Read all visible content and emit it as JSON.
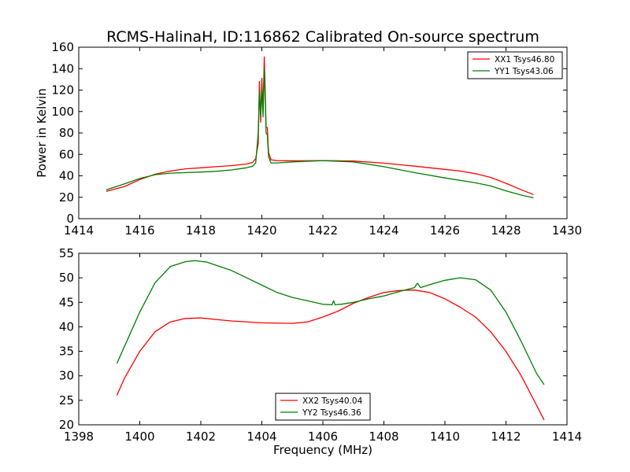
{
  "figure": {
    "title": "RCMS-HalinaH, ID:116862 Calibrated On-source spectrum",
    "colors": {
      "red": "#ff0000",
      "green": "#007f00"
    }
  },
  "chart_data": [
    {
      "type": "line",
      "title": "RCMS-HalinaH, ID:116862 Calibrated On-source spectrum",
      "xlabel": "",
      "ylabel": "Power in Kelvin",
      "xlim": [
        1414,
        1430
      ],
      "ylim": [
        0,
        160
      ],
      "xticks": [
        "1414",
        "1416",
        "1418",
        "1420",
        "1422",
        "1424",
        "1426",
        "1428",
        "1430"
      ],
      "yticks": [
        "0",
        "20",
        "40",
        "60",
        "80",
        "100",
        "120",
        "140",
        "160"
      ],
      "grid": false,
      "legend": "top-right",
      "series": [
        {
          "name": "XX1 Tsys46.80",
          "color": "#ff0000",
          "points": [
            [
              1414.9,
              25.5
            ],
            [
              1415.5,
              30
            ],
            [
              1416,
              36.5
            ],
            [
              1416.5,
              41.5
            ],
            [
              1417,
              44.5
            ],
            [
              1417.5,
              46.5
            ],
            [
              1418,
              47.5
            ],
            [
              1418.5,
              48.5
            ],
            [
              1419,
              49.5
            ],
            [
              1419.5,
              51
            ],
            [
              1419.7,
              52.5
            ],
            [
              1419.8,
              56
            ],
            [
              1419.88,
              70
            ],
            [
              1419.92,
              128
            ],
            [
              1419.96,
              90
            ],
            [
              1420.0,
              131
            ],
            [
              1420.04,
              100
            ],
            [
              1420.08,
              151
            ],
            [
              1420.12,
              110
            ],
            [
              1420.14,
              85
            ],
            [
              1420.18,
              85
            ],
            [
              1420.22,
              62
            ],
            [
              1420.3,
              55
            ],
            [
              1420.5,
              54.2
            ],
            [
              1421,
              54
            ],
            [
              1422,
              54.2
            ],
            [
              1423,
              53.8
            ],
            [
              1424,
              51.8
            ],
            [
              1425,
              49
            ],
            [
              1426,
              46
            ],
            [
              1426.5,
              44.5
            ],
            [
              1427,
              42
            ],
            [
              1427.5,
              38.5
            ],
            [
              1428,
              33
            ],
            [
              1428.5,
              27
            ],
            [
              1428.9,
              22.5
            ]
          ]
        },
        {
          "name": "YY1 Tsys43.06",
          "color": "#007f00",
          "points": [
            [
              1414.9,
              27
            ],
            [
              1415.5,
              32.5
            ],
            [
              1416,
              37.5
            ],
            [
              1416.5,
              41
            ],
            [
              1417,
              42.5
            ],
            [
              1418,
              43.5
            ],
            [
              1418.5,
              44.2
            ],
            [
              1419,
              45.5
            ],
            [
              1419.5,
              47.5
            ],
            [
              1419.7,
              49
            ],
            [
              1419.8,
              52
            ],
            [
              1419.88,
              80
            ],
            [
              1419.92,
              118
            ],
            [
              1419.96,
              96
            ],
            [
              1420.0,
              122
            ],
            [
              1420.04,
              95
            ],
            [
              1420.08,
              140
            ],
            [
              1420.12,
              105
            ],
            [
              1420.14,
              80
            ],
            [
              1420.18,
              78
            ],
            [
              1420.22,
              58
            ],
            [
              1420.3,
              52
            ],
            [
              1420.5,
              52
            ],
            [
              1421,
              53
            ],
            [
              1422,
              54.2
            ],
            [
              1423,
              53
            ],
            [
              1424,
              48.5
            ],
            [
              1425,
              43
            ],
            [
              1426,
              38
            ],
            [
              1427,
              33.5
            ],
            [
              1427.5,
              30.5
            ],
            [
              1428,
              26
            ],
            [
              1428.5,
              22
            ],
            [
              1428.9,
              19.5
            ]
          ]
        }
      ]
    },
    {
      "type": "line",
      "title": "",
      "xlabel": "Frequency (MHz)",
      "ylabel": "",
      "xlim": [
        1398,
        1414
      ],
      "ylim": [
        20,
        55
      ],
      "xticks": [
        "1398",
        "1400",
        "1402",
        "1404",
        "1406",
        "1408",
        "1410",
        "1412",
        "1414"
      ],
      "yticks": [
        "20",
        "25",
        "30",
        "35",
        "40",
        "45",
        "50",
        "55"
      ],
      "grid": false,
      "legend": "bottom-center",
      "series": [
        {
          "name": "XX2 Tsys40.04",
          "color": "#ff0000",
          "points": [
            [
              1399.25,
              26
            ],
            [
              1399.5,
              29.5
            ],
            [
              1400,
              35
            ],
            [
              1400.5,
              39
            ],
            [
              1401,
              41
            ],
            [
              1401.5,
              41.7
            ],
            [
              1402,
              41.8
            ],
            [
              1402.5,
              41.5
            ],
            [
              1403,
              41.2
            ],
            [
              1404,
              40.8
            ],
            [
              1405,
              40.7
            ],
            [
              1405.5,
              41
            ],
            [
              1406,
              42
            ],
            [
              1406.5,
              43.2
            ],
            [
              1407,
              44.8
            ],
            [
              1407.5,
              46
            ],
            [
              1408,
              47
            ],
            [
              1408.5,
              47.4
            ],
            [
              1409,
              47.5
            ],
            [
              1409.5,
              47
            ],
            [
              1410,
              45.7
            ],
            [
              1410.5,
              44
            ],
            [
              1411,
              42
            ],
            [
              1411.5,
              39
            ],
            [
              1412,
              35
            ],
            [
              1412.5,
              30
            ],
            [
              1413,
              24
            ],
            [
              1413.25,
              21
            ]
          ]
        },
        {
          "name": "YY2 Tsys46.36",
          "color": "#007f00",
          "points": [
            [
              1399.25,
              32.5
            ],
            [
              1399.5,
              36
            ],
            [
              1400,
              43
            ],
            [
              1400.5,
              49
            ],
            [
              1401,
              52.3
            ],
            [
              1401.5,
              53.3
            ],
            [
              1401.8,
              53.5
            ],
            [
              1402.2,
              53.2
            ],
            [
              1403,
              51.5
            ],
            [
              1403.5,
              50
            ],
            [
              1404,
              48.5
            ],
            [
              1404.5,
              47
            ],
            [
              1405,
              46
            ],
            [
              1405.5,
              45.3
            ],
            [
              1406,
              44.6
            ],
            [
              1406.3,
              44.5
            ],
            [
              1406.35,
              45.3
            ],
            [
              1406.4,
              44.5
            ],
            [
              1406.6,
              44.6
            ],
            [
              1407,
              45
            ],
            [
              1407.5,
              45.7
            ],
            [
              1408,
              46.3
            ],
            [
              1408.5,
              47.2
            ],
            [
              1409,
              48
            ],
            [
              1409.1,
              48.9
            ],
            [
              1409.2,
              48
            ],
            [
              1409.5,
              48.6
            ],
            [
              1410,
              49.5
            ],
            [
              1410.5,
              50
            ],
            [
              1411,
              49.6
            ],
            [
              1411.5,
              47.5
            ],
            [
              1412,
              43
            ],
            [
              1412.5,
              37
            ],
            [
              1413,
              30.5
            ],
            [
              1413.25,
              28.2
            ]
          ]
        }
      ]
    }
  ]
}
